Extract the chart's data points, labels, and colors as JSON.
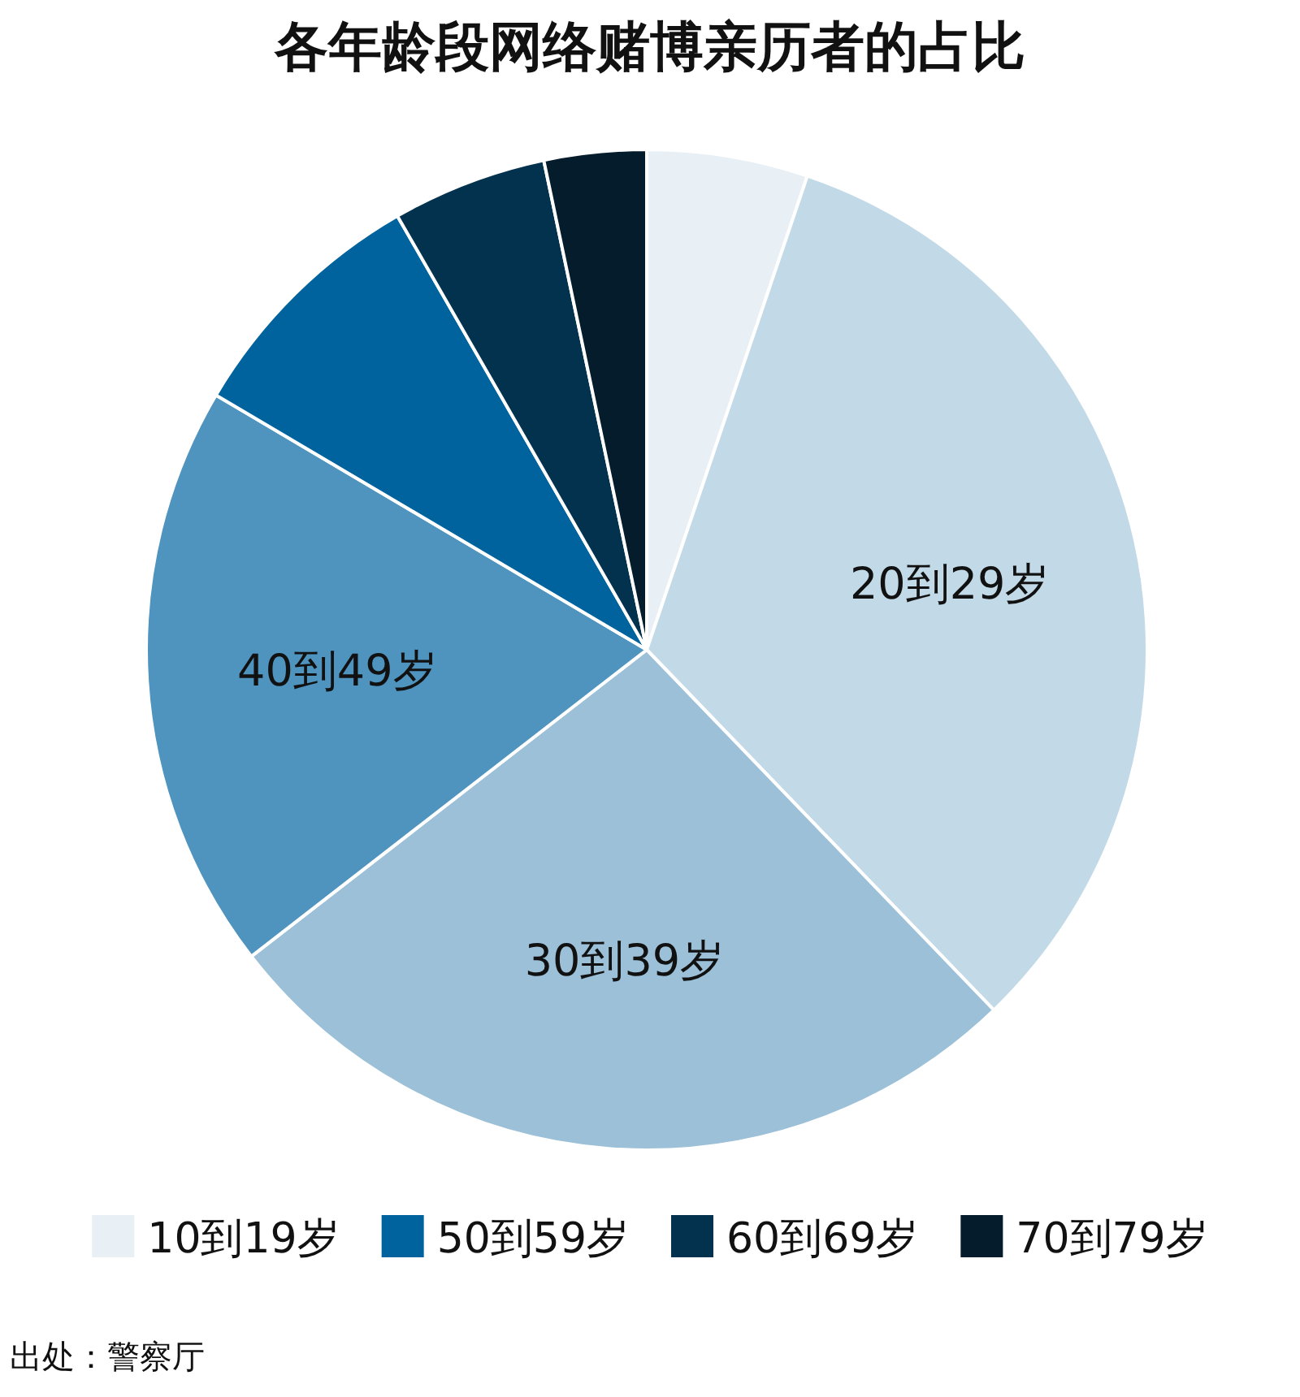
{
  "chart_data": {
    "type": "pie",
    "title": "各年龄段网络赌博亲历者的占比",
    "categories": [
      "10到19岁",
      "20到29岁",
      "30到39岁",
      "40到49岁",
      "50到59岁",
      "60到69岁",
      "70到79岁"
    ],
    "values": [
      5.2,
      32.6,
      26.7,
      19.0,
      8.2,
      5.0,
      3.3
    ],
    "colors": [
      "#e8f0f5",
      "#c2d9e7",
      "#9bc0d8",
      "#4e94bf",
      "#00639e",
      "#03324f",
      "#051c2c"
    ],
    "legend": "bottom",
    "annotations": [
      "出处：警察厅"
    ]
  }
}
